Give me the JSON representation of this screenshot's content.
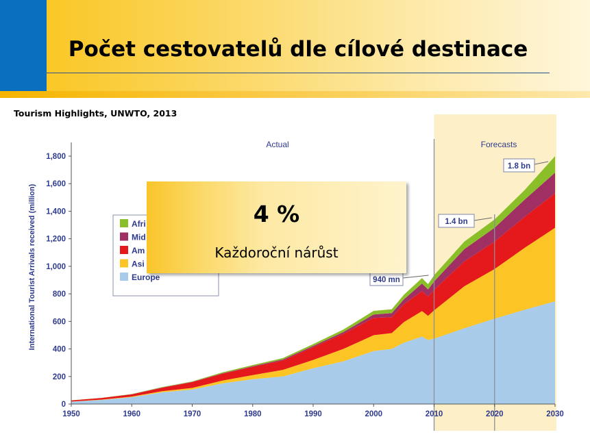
{
  "slide": {
    "title": "Počet cestovatelů dle cílové destinace",
    "source": "Tourism Highlights, UNWTO, 2013"
  },
  "callout": {
    "value": "4 %",
    "text": "Každoroční nárůst"
  },
  "colors": {
    "Europe": "#a9cbea",
    "Asia": "#fcc525",
    "Americas": "#e5191b",
    "Middle East": "#a03064",
    "Africa": "#8bbf2a",
    "axis_text": "#2e3a8c",
    "forecast_band": "#fdf0c8"
  },
  "chart_data": {
    "type": "area",
    "stacked": true,
    "ylabel": "International Tourist Arrivals received (million)",
    "xlim": [
      1950,
      2030
    ],
    "ylim": [
      0,
      1800
    ],
    "x_ticks": [
      "1950",
      "1960",
      "1970",
      "1980",
      "1990",
      "2000",
      "2010",
      "2020",
      "2030"
    ],
    "y_ticks": [
      "0",
      "200",
      "400",
      "600",
      "800",
      "1,000",
      "1,200",
      "1,400",
      "1,600",
      "1,800"
    ],
    "section_labels": [
      "Actual",
      "Forecasts"
    ],
    "forecast_range": [
      2010,
      2030
    ],
    "legend_position": "left",
    "legend_visible": [
      "Afri",
      "Mid",
      "Am",
      "Asi",
      "Europe"
    ],
    "annotations": [
      {
        "label": "940 mn",
        "x": 2010,
        "y": 940
      },
      {
        "label": "1.4 bn",
        "x": 2020,
        "y": 1400
      },
      {
        "label": "1.8 bn",
        "x": 2030,
        "y": 1800
      }
    ],
    "x": [
      1950,
      1955,
      1960,
      1965,
      1970,
      1975,
      1980,
      1985,
      1990,
      1995,
      2000,
      2003,
      2005,
      2008,
      2009,
      2010,
      2015,
      2020,
      2025,
      2030
    ],
    "series": [
      {
        "name": "Europe",
        "values": [
          17,
          30,
          50,
          85,
          105,
          150,
          180,
          200,
          260,
          310,
          385,
          400,
          445,
          490,
          465,
          475,
          550,
          620,
          685,
          745
        ]
      },
      {
        "name": "Asi",
        "values": [
          1,
          2,
          4,
          8,
          12,
          20,
          30,
          48,
          60,
          90,
          115,
          115,
          150,
          185,
          175,
          205,
          305,
          360,
          450,
          535
        ]
      },
      {
        "name": "Am",
        "values": [
          8,
          12,
          16,
          25,
          42,
          50,
          60,
          68,
          93,
          110,
          125,
          115,
          130,
          145,
          140,
          150,
          180,
          200,
          225,
          250
        ]
      },
      {
        "name": "Mid",
        "values": [
          0,
          0,
          1,
          2,
          2,
          3,
          5,
          8,
          9,
          13,
          25,
          30,
          35,
          55,
          52,
          60,
          90,
          100,
          125,
          150
        ]
      },
      {
        "name": "Afri",
        "values": [
          1,
          1,
          2,
          3,
          3,
          7,
          8,
          10,
          13,
          18,
          26,
          28,
          33,
          40,
          38,
          45,
          55,
          60,
          70,
          120
        ]
      }
    ]
  }
}
